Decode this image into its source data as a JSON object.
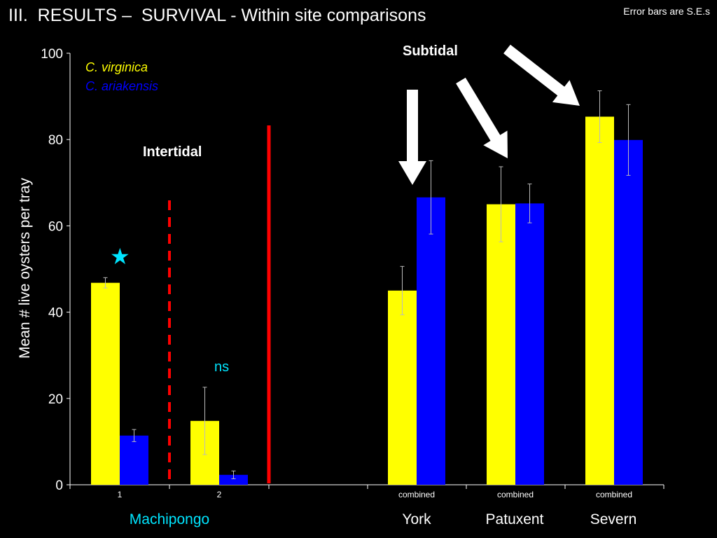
{
  "slide": {
    "title": "III.  RESULTS –  SURVIVAL - Within site comparisons",
    "note": "Error bars are S.E.s"
  },
  "colors": {
    "virginica": "#ffff00",
    "ariakensis": "#0000ff",
    "site_label": "#00e5ff",
    "divider": "#ff0000",
    "star": "#00e5ff",
    "ns": "#00e5ff"
  },
  "annotations": {
    "intertidal": "Intertidal",
    "subtidal": "Subtidal",
    "ns": "ns",
    "star_icon": "star-icon"
  },
  "site_labels": {
    "machipongo": "Machipongo",
    "york": "York",
    "patuxent": "Patuxent",
    "severn": "Severn"
  },
  "chart_data": {
    "type": "bar",
    "ylabel": "Mean # live oysters per tray",
    "xlabel": "",
    "ylim": [
      0,
      100
    ],
    "yticks": [
      0,
      20,
      40,
      60,
      80,
      100
    ],
    "categories": [
      "1",
      "2",
      "combined",
      "combined",
      "combined"
    ],
    "series": [
      {
        "name": "C. virginica",
        "values": [
          46.8,
          14.8,
          45.0,
          65.0,
          85.3
        ],
        "errors": [
          1.2,
          7.8,
          5.6,
          8.7,
          6.0
        ]
      },
      {
        "name": "C. ariakensis",
        "values": [
          11.4,
          2.3,
          66.6,
          65.2,
          79.9
        ],
        "errors": [
          1.4,
          0.9,
          8.5,
          4.5,
          8.2
        ]
      }
    ],
    "grid": false
  }
}
